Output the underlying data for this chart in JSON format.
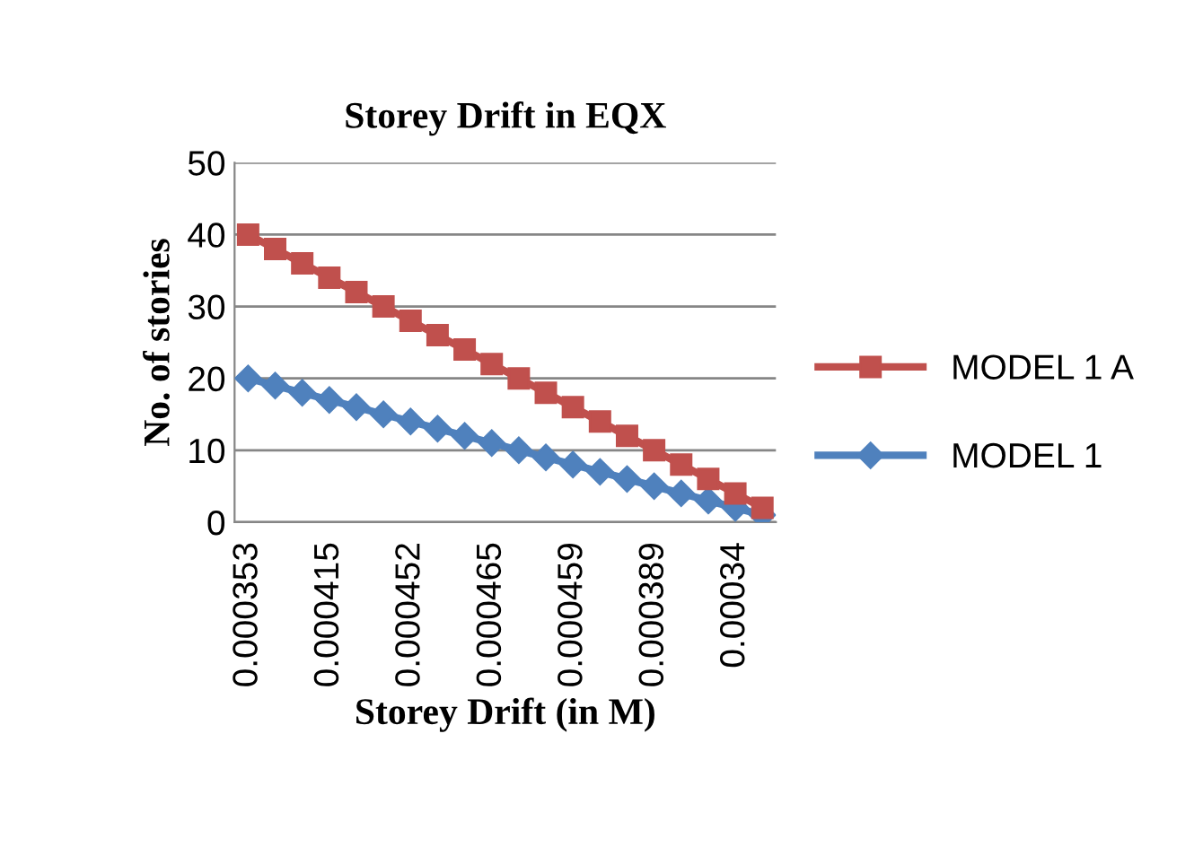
{
  "chart_data": {
    "type": "line",
    "title": "Storey Drift in EQX",
    "xlabel": "Storey Drift (in M)",
    "ylabel": "No. of stories",
    "categories": [
      "0.000353",
      null,
      null,
      "0.000415",
      null,
      null,
      "0.000452",
      null,
      null,
      "0.000465",
      null,
      null,
      "0.000459",
      null,
      null,
      "0.000389",
      null,
      null,
      "0.00034",
      null
    ],
    "series": [
      {
        "name": "MODEL 1 A",
        "color": "#c0504d",
        "marker": "square",
        "values": [
          40,
          38,
          36,
          34,
          32,
          30,
          28,
          26,
          24,
          22,
          20,
          18,
          16,
          14,
          12,
          10,
          8,
          6,
          4,
          2
        ]
      },
      {
        "name": "MODEL 1",
        "color": "#4f81bd",
        "marker": "diamond",
        "values": [
          20,
          19,
          18,
          17,
          16,
          15,
          14,
          13,
          12,
          11,
          10,
          9,
          8,
          7,
          6,
          5,
          4,
          3,
          2,
          1
        ]
      }
    ],
    "ylim": [
      0,
      50
    ],
    "yticks": [
      0,
      10,
      20,
      30,
      40,
      50
    ],
    "grid": "y",
    "legend": "right",
    "line_style": "solid"
  }
}
